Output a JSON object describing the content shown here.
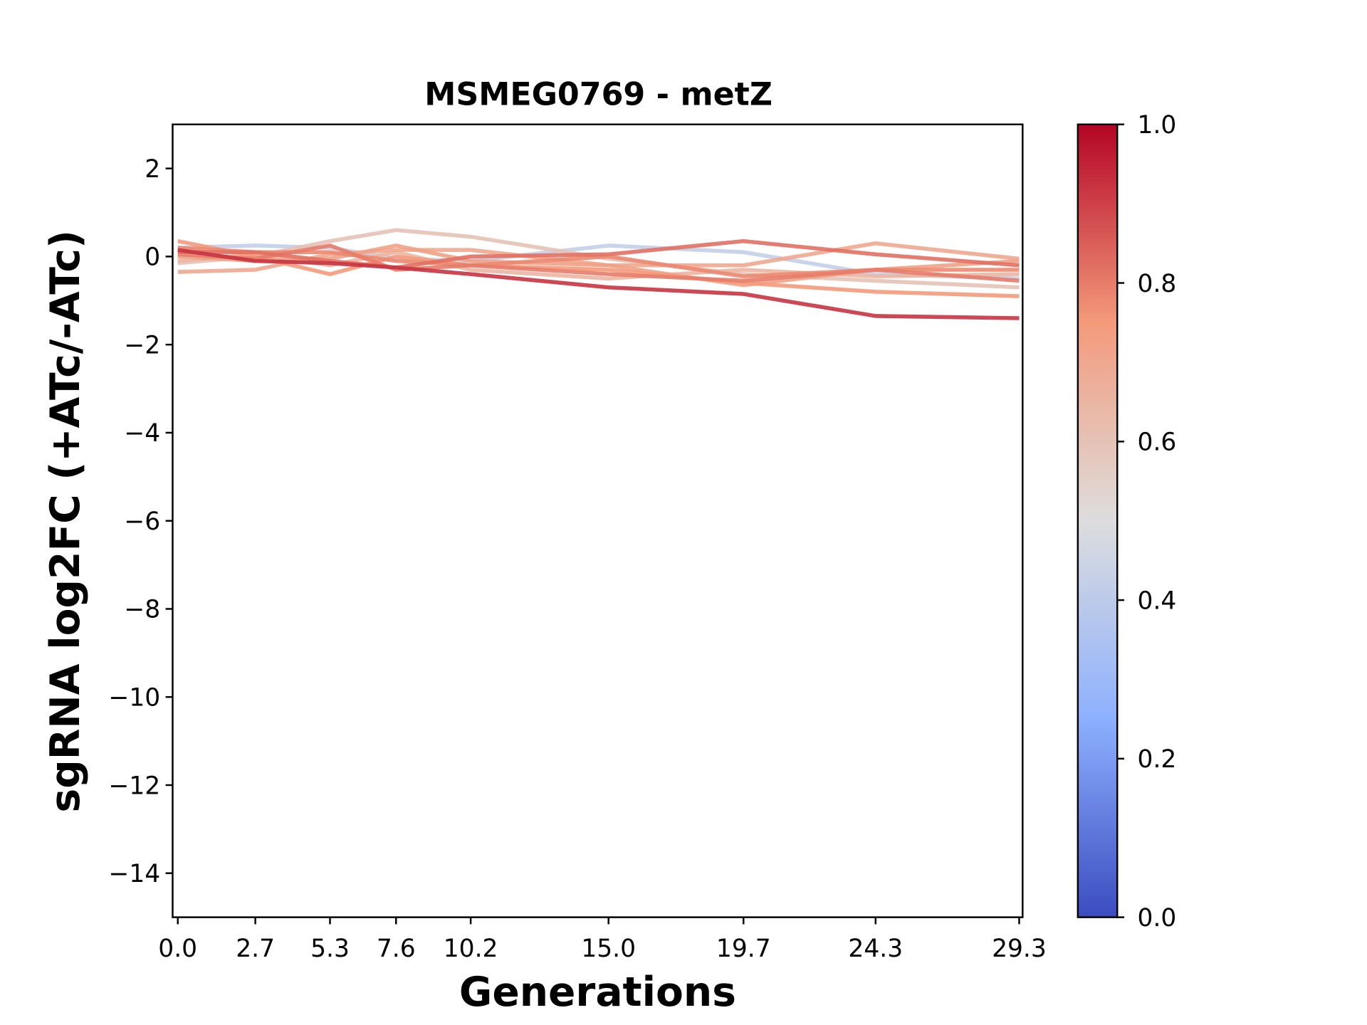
{
  "chart_data": {
    "type": "line",
    "title": "MSMEG0769 - metZ",
    "xlabel": "Generations",
    "ylabel": "sgRNA log2FC (+ATc/-ATc)",
    "x": [
      0.0,
      2.7,
      5.3,
      7.6,
      10.2,
      15.0,
      19.7,
      24.3,
      29.3
    ],
    "x_tick_labels": [
      "0.0",
      "2.7",
      "5.3",
      "7.6",
      "10.2",
      "15.0",
      "19.7",
      "24.3",
      "29.3"
    ],
    "xlim": [
      -0.18,
      29.42
    ],
    "ylim": [
      -15,
      3
    ],
    "y_ticks": [
      2,
      0,
      -2,
      -4,
      -6,
      -8,
      -10,
      -12,
      -14
    ],
    "y_tick_labels": [
      "2",
      "0",
      "−2",
      "−4",
      "−6",
      "−8",
      "−10",
      "−12",
      "−14"
    ],
    "grid": false,
    "colormap": "coolwarm",
    "colorbar": {
      "range": [
        0,
        1
      ],
      "tick_labels": [
        "0.0",
        "0.2",
        "0.4",
        "0.6",
        "0.8",
        "1.0"
      ],
      "ticks": [
        0,
        0.2,
        0.4,
        0.6,
        0.8,
        1.0
      ]
    },
    "series": [
      {
        "color_value": 0.42,
        "values": [
          0.2,
          0.25,
          0.2,
          -0.05,
          -0.1,
          0.25,
          0.1,
          -0.4,
          -0.5
        ]
      },
      {
        "color_value": 0.6,
        "values": [
          -0.15,
          0.0,
          0.35,
          0.6,
          0.45,
          -0.05,
          -0.4,
          -0.55,
          -0.7
        ]
      },
      {
        "color_value": 0.65,
        "values": [
          -0.1,
          0.05,
          -0.2,
          0.1,
          -0.3,
          -0.5,
          -0.3,
          -0.45,
          -0.4
        ]
      },
      {
        "color_value": 0.7,
        "values": [
          -0.35,
          -0.3,
          0.05,
          0.15,
          0.15,
          -0.2,
          -0.2,
          0.3,
          -0.05
        ]
      },
      {
        "color_value": 0.72,
        "values": [
          0.0,
          -0.1,
          -0.05,
          0.25,
          -0.1,
          -0.2,
          -0.65,
          -0.3,
          -0.1
        ]
      },
      {
        "color_value": 0.75,
        "values": [
          0.35,
          0.0,
          -0.4,
          0.0,
          -0.2,
          -0.3,
          -0.6,
          -0.8,
          -0.9
        ]
      },
      {
        "color_value": 0.78,
        "values": [
          0.2,
          0.1,
          0.1,
          -0.1,
          -0.2,
          0.0,
          -0.45,
          -0.3,
          -0.3
        ]
      },
      {
        "color_value": 0.8,
        "values": [
          0.05,
          -0.05,
          0.25,
          -0.3,
          -0.2,
          -0.4,
          -0.55,
          -0.3,
          -0.55
        ]
      },
      {
        "color_value": 0.82,
        "values": [
          0.1,
          0.1,
          -0.1,
          -0.25,
          0.0,
          0.05,
          0.35,
          0.05,
          -0.2
        ]
      },
      {
        "color_value": 0.92,
        "values": [
          0.15,
          -0.1,
          -0.15,
          -0.25,
          -0.4,
          -0.7,
          -0.85,
          -1.35,
          -1.4
        ]
      }
    ]
  }
}
